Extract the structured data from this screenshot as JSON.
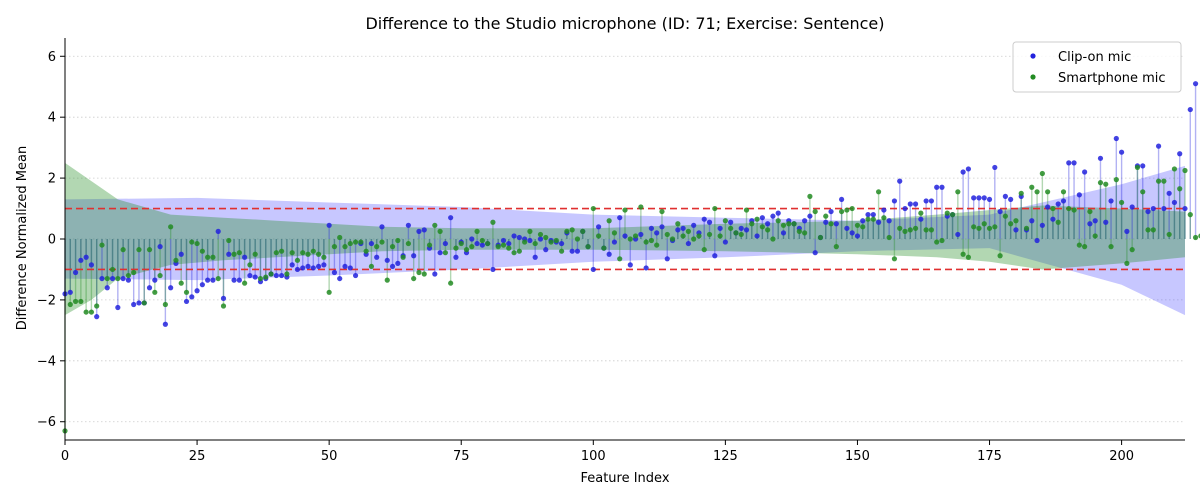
{
  "chart_data": {
    "type": "scatter",
    "title": "Difference to the Studio microphone (ID: 71; Exercise: Sentence)",
    "xlabel": "Feature Index",
    "ylabel": "Difference Normalized Mean",
    "xlim": [
      0,
      212
    ],
    "ylim": [
      -6.6,
      6.6
    ],
    "xticks": [
      0,
      25,
      50,
      75,
      100,
      125,
      150,
      175,
      200
    ],
    "yticks": [
      -6,
      -4,
      -2,
      0,
      2,
      4,
      6
    ],
    "grid": "y-dotted",
    "legend_position": "top-right",
    "thresholds": [
      1,
      -1
    ],
    "colors": {
      "clip": "#2222dd",
      "phone": "#228b22",
      "threshold": "#e03030",
      "grid": "#cccccc"
    },
    "series": [
      {
        "name": "Clip-on mic",
        "color": "#2222dd",
        "y": [
          -1.8,
          -1.75,
          -1.1,
          -0.7,
          -0.6,
          -0.85,
          -2.55,
          -1.3,
          -1.6,
          -1.3,
          -2.25,
          -1.3,
          -1.35,
          -2.15,
          -2.1,
          -2.1,
          -1.6,
          -1.35,
          -0.25,
          -2.8,
          -1.6,
          -0.8,
          -0.5,
          -2.05,
          -1.9,
          -1.7,
          -1.5,
          -1.35,
          -1.35,
          0.25,
          -1.95,
          -0.5,
          -1.35,
          -1.35,
          -0.6,
          -1.2,
          -1.25,
          -1.4,
          -1.3,
          -1.15,
          -1.2,
          -1.2,
          -1.25,
          -0.85,
          -1.0,
          -0.95,
          -0.9,
          -0.95,
          -0.9,
          -0.85,
          0.45,
          -1.1,
          -1.3,
          -0.9,
          -0.95,
          -1.2,
          -0.15,
          -0.5,
          -0.15,
          -0.6,
          0.4,
          -0.7,
          -0.9,
          -0.8,
          -0.55,
          0.45,
          -0.55,
          0.25,
          0.3,
          -0.3,
          -1.15,
          -0.45,
          -0.15,
          0.7,
          -0.6,
          -0.1,
          -0.45,
          0.0,
          -0.15,
          -0.2,
          -0.15,
          -1.0,
          -0.2,
          -0.05,
          -0.15,
          0.1,
          0.05,
          0.0,
          -0.05,
          -0.6,
          0.0,
          -0.35,
          -0.05,
          -0.1,
          -0.15,
          0.2,
          -0.4,
          -0.4,
          0.25,
          -0.25,
          -1.0,
          0.4,
          -0.3,
          -0.5,
          -0.1,
          0.7,
          0.1,
          -0.85,
          0.0,
          0.15,
          -0.95,
          0.35,
          0.2,
          0.4,
          -0.65,
          -0.05,
          0.3,
          0.35,
          -0.15,
          0.45,
          0.2,
          0.65,
          0.55,
          -0.55,
          0.35,
          -0.1,
          0.55,
          0.2,
          0.35,
          0.3,
          0.6,
          0.1,
          0.7,
          0.5,
          0.75,
          0.85,
          0.2,
          0.6,
          0.5,
          0.35,
          0.6,
          0.75,
          -0.45,
          0.05,
          0.55,
          0.9,
          0.5,
          1.3,
          0.35,
          0.2,
          0.1,
          0.6,
          0.8,
          0.8,
          0.55,
          0.95,
          0.6,
          1.25,
          1.9,
          1.0,
          1.15,
          1.15,
          0.65,
          1.25,
          1.25,
          1.7,
          1.7,
          0.75,
          0.8,
          0.15,
          2.2,
          2.3,
          1.35,
          1.35,
          1.35,
          1.3,
          2.35,
          0.9,
          1.4,
          1.3,
          0.3,
          1.4,
          0.3,
          0.6,
          -0.05,
          0.45,
          1.05,
          0.65,
          1.15,
          1.25,
          2.5,
          2.5,
          1.45,
          2.2,
          0.5,
          0.6,
          2.65,
          0.55,
          1.25,
          3.3,
          2.85,
          0.25,
          1.05,
          2.4,
          2.4,
          0.9,
          1.0,
          3.05,
          1.0,
          1.5,
          1.2,
          2.8,
          1.0,
          4.25,
          5.1
        ]
      },
      {
        "name": "Smartphone mic",
        "color": "#228b22",
        "y": [
          -6.3,
          -2.15,
          -2.05,
          -2.05,
          -2.4,
          -2.4,
          -2.2,
          -0.2,
          -1.3,
          -1.0,
          -1.3,
          -0.35,
          -1.2,
          -1.1,
          -0.35,
          -2.1,
          -0.35,
          -1.75,
          -1.2,
          -2.15,
          0.4,
          -0.7,
          -1.45,
          -1.75,
          -0.1,
          -0.15,
          -0.4,
          -0.6,
          -0.6,
          -1.3,
          -2.2,
          -0.05,
          -0.5,
          -0.45,
          -1.45,
          -0.85,
          -0.5,
          -1.3,
          -1.25,
          -1.15,
          -0.45,
          -0.4,
          -1.15,
          -0.45,
          -0.7,
          -0.45,
          -0.5,
          -0.4,
          -0.5,
          -0.6,
          -1.75,
          -0.25,
          0.05,
          -0.25,
          -0.15,
          -0.1,
          -0.1,
          -0.4,
          -0.9,
          -0.25,
          -0.1,
          -1.35,
          -0.25,
          -0.05,
          -0.6,
          -0.15,
          -1.3,
          -1.1,
          -1.15,
          -0.2,
          0.45,
          0.25,
          -0.45,
          -1.45,
          -0.3,
          -0.15,
          -0.35,
          -0.25,
          0.25,
          -0.05,
          -0.15,
          0.55,
          -0.25,
          -0.2,
          -0.3,
          -0.45,
          -0.4,
          -0.1,
          0.25,
          -0.15,
          0.15,
          0.05,
          -0.1,
          -0.05,
          -0.4,
          0.25,
          0.3,
          0.0,
          0.25,
          -0.25,
          1.0,
          0.1,
          -0.3,
          0.6,
          0.2,
          -0.65,
          0.95,
          0.0,
          0.1,
          1.05,
          -0.1,
          -0.05,
          -0.2,
          0.9,
          0.15,
          0.0,
          0.5,
          0.1,
          0.25,
          0.0,
          0.1,
          -0.35,
          0.15,
          1.0,
          0.1,
          0.6,
          0.35,
          0.2,
          0.15,
          0.95,
          0.5,
          0.65,
          0.4,
          0.3,
          0.0,
          0.6,
          0.45,
          0.5,
          0.5,
          0.25,
          0.2,
          1.4,
          0.9,
          0.05,
          0.75,
          0.5,
          -0.25,
          0.9,
          0.95,
          1.0,
          0.45,
          0.4,
          0.65,
          0.65,
          1.55,
          0.7,
          0.05,
          -0.65,
          0.35,
          0.25,
          0.3,
          0.35,
          0.85,
          0.3,
          0.3,
          -0.1,
          -0.05,
          0.85,
          0.8,
          1.55,
          -0.5,
          -0.6,
          0.4,
          0.35,
          0.5,
          0.35,
          0.4,
          -0.55,
          0.75,
          0.5,
          0.6,
          1.5,
          0.35,
          1.7,
          1.55,
          2.15,
          1.55,
          1.0,
          0.55,
          1.55,
          1.0,
          0.95,
          -0.2,
          -0.25,
          0.9,
          0.1,
          1.85,
          1.8,
          -0.25,
          1.95,
          1.2,
          -0.8,
          -0.35,
          2.35,
          1.55,
          0.3,
          0.3,
          1.9,
          1.9,
          0.15,
          2.3,
          1.65,
          2.25,
          0.8,
          0.05,
          0.1
        ]
      }
    ],
    "bands": [
      {
        "name": "Clip-on mic band",
        "color": "#4444ff",
        "x": [
          0,
          25,
          50,
          75,
          100,
          125,
          150,
          175,
          200,
          212
        ],
        "upper": [
          1.3,
          1.35,
          1.2,
          1.05,
          0.8,
          0.7,
          0.6,
          0.8,
          1.8,
          2.4
        ],
        "lower": [
          -1.3,
          -1.35,
          -1.2,
          -1.0,
          -0.75,
          -0.6,
          -0.4,
          -0.3,
          -1.5,
          -2.5
        ]
      },
      {
        "name": "Smartphone mic band",
        "color": "#228b22",
        "x": [
          0,
          5,
          10,
          20,
          30,
          40,
          50,
          60,
          75,
          100,
          125,
          150,
          165,
          175,
          185,
          200,
          212
        ],
        "upper": [
          2.5,
          1.9,
          1.3,
          0.8,
          0.7,
          0.6,
          0.5,
          0.4,
          0.35,
          0.35,
          0.5,
          0.6,
          0.8,
          0.95,
          1.1,
          1.0,
          0.9
        ],
        "lower": [
          -2.5,
          -2.0,
          -1.3,
          -0.85,
          -0.7,
          -0.6,
          -0.5,
          -0.4,
          -0.35,
          -0.35,
          -0.4,
          -0.5,
          -0.6,
          -0.75,
          -1.0,
          -0.8,
          -0.6
        ]
      }
    ]
  }
}
